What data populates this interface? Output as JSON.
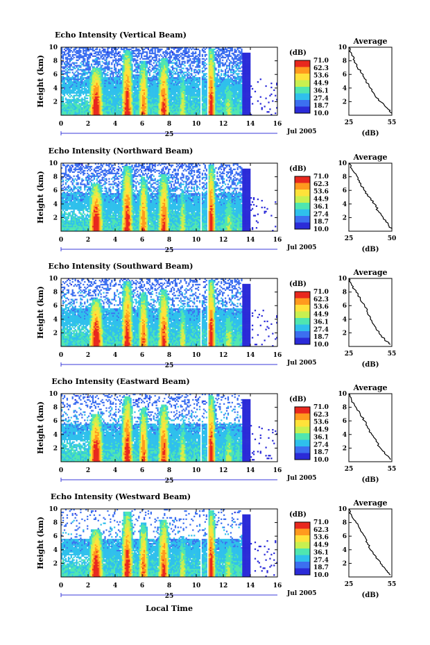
{
  "figure": {
    "xlabel": "Local Time",
    "date_label": "Jul 2005",
    "day_label": "25",
    "colorbar_unit": "(dB)",
    "colorbar_labels": [
      "71.0",
      "62.3",
      "53.6",
      "44.9",
      "36.1",
      "27.4",
      "18.7",
      "10.0"
    ],
    "colors": [
      "#2b2bd8",
      "#3c6ff0",
      "#2fc0ec",
      "#4fe6b0",
      "#c8f050",
      "#ffe23a",
      "#ff9a1e",
      "#e8281e"
    ]
  },
  "chart_data": [
    {
      "type": "heatmap",
      "title": "Echo Intensity (Vertical Beam)",
      "ylabel": "Height (km)",
      "xlim": [
        0,
        16
      ],
      "ylim": [
        0,
        10
      ],
      "x_ticks": [
        0,
        2,
        4,
        6,
        8,
        10,
        12,
        14,
        16
      ],
      "y_ticks": [
        2,
        4,
        6,
        8,
        10
      ],
      "z_range": [
        10.0,
        71.0
      ],
      "avg_profile": {
        "title": "Average",
        "xlabel": "(dB)",
        "x_ticks": [
          25,
          55
        ],
        "xlim": [
          25,
          55
        ],
        "y_ticks": [
          2,
          4,
          6,
          8,
          10
        ],
        "ylim": [
          0,
          10
        ],
        "height": [
          0.3,
          1,
          2,
          3,
          4,
          5,
          6,
          7,
          8,
          9,
          10
        ],
        "value": [
          55,
          52,
          47,
          43,
          40,
          37,
          35,
          31,
          29,
          27,
          25
        ]
      }
    },
    {
      "type": "heatmap",
      "title": "Echo Intensity (Northward Beam)",
      "ylabel": "Height (km)",
      "xlim": [
        0,
        16
      ],
      "ylim": [
        0,
        10
      ],
      "x_ticks": [
        0,
        2,
        4,
        6,
        8,
        10,
        12,
        14,
        16
      ],
      "y_ticks": [
        2,
        4,
        6,
        8,
        10
      ],
      "z_range": [
        10.0,
        71.0
      ],
      "avg_profile": {
        "title": "Average",
        "xlabel": "(dB)",
        "x_ticks": [
          25,
          50
        ],
        "xlim": [
          25,
          50
        ],
        "y_ticks": [
          2,
          4,
          6,
          8,
          10
        ],
        "ylim": [
          0,
          10
        ],
        "height": [
          0.3,
          1,
          2,
          3,
          4,
          5,
          6,
          7,
          8,
          9,
          10
        ],
        "value": [
          50,
          48,
          45,
          42,
          40,
          37,
          34,
          32,
          30,
          27,
          25
        ]
      }
    },
    {
      "type": "heatmap",
      "title": "Echo Intensity (Southward Beam)",
      "ylabel": "Height (km)",
      "xlim": [
        0,
        16
      ],
      "ylim": [
        0,
        10
      ],
      "x_ticks": [
        0,
        2,
        4,
        6,
        8,
        10,
        12,
        14,
        16
      ],
      "y_ticks": [
        2,
        4,
        6,
        8,
        10
      ],
      "z_range": [
        10.0,
        71.0
      ],
      "avg_profile": {
        "title": "Average",
        "xlabel": "(dB)",
        "x_ticks": [
          25,
          55
        ],
        "xlim": [
          25,
          55
        ],
        "y_ticks": [
          2,
          4,
          6,
          8,
          10
        ],
        "ylim": [
          0,
          10
        ],
        "height": [
          0.3,
          1,
          2,
          3,
          4,
          5,
          6,
          7,
          8,
          9,
          10
        ],
        "value": [
          54,
          50,
          46,
          43,
          40,
          38,
          36,
          33,
          30,
          27,
          25
        ]
      }
    },
    {
      "type": "heatmap",
      "title": "Echo Intensity (Eastward Beam)",
      "ylabel": "Height (km)",
      "xlim": [
        0,
        16
      ],
      "ylim": [
        0,
        10
      ],
      "x_ticks": [
        0,
        2,
        4,
        6,
        8,
        10,
        12,
        14,
        16
      ],
      "y_ticks": [
        2,
        4,
        6,
        8,
        10
      ],
      "z_range": [
        10.0,
        71.0
      ],
      "avg_profile": {
        "title": "Average",
        "xlabel": "(dB)",
        "x_ticks": [
          25,
          55
        ],
        "xlim": [
          25,
          55
        ],
        "y_ticks": [
          2,
          4,
          6,
          8,
          10
        ],
        "ylim": [
          0,
          10
        ],
        "height": [
          0.3,
          1,
          2,
          3,
          4,
          5,
          6,
          7,
          8,
          9,
          10
        ],
        "value": [
          54,
          51,
          47,
          44,
          41,
          38,
          36,
          33,
          30,
          27,
          25
        ]
      }
    },
    {
      "type": "heatmap",
      "title": "Echo Intensity (Westward Beam)",
      "ylabel": "Height (km)",
      "xlim": [
        0,
        16
      ],
      "ylim": [
        0,
        10
      ],
      "x_ticks": [
        0,
        2,
        4,
        6,
        8,
        10,
        12,
        14,
        16
      ],
      "y_ticks": [
        2,
        4,
        6,
        8,
        10
      ],
      "z_range": [
        10.0,
        71.0
      ],
      "avg_profile": {
        "title": "Average",
        "xlabel": "(dB)",
        "x_ticks": [
          25,
          55
        ],
        "xlim": [
          25,
          55
        ],
        "y_ticks": [
          2,
          4,
          6,
          8,
          10
        ],
        "ylim": [
          0,
          10
        ],
        "height": [
          0.3,
          1,
          2,
          3,
          4,
          5,
          6,
          7,
          8,
          9,
          10
        ],
        "value": [
          54,
          51,
          47,
          44,
          40,
          38,
          36,
          33,
          30,
          27,
          25
        ]
      }
    }
  ]
}
